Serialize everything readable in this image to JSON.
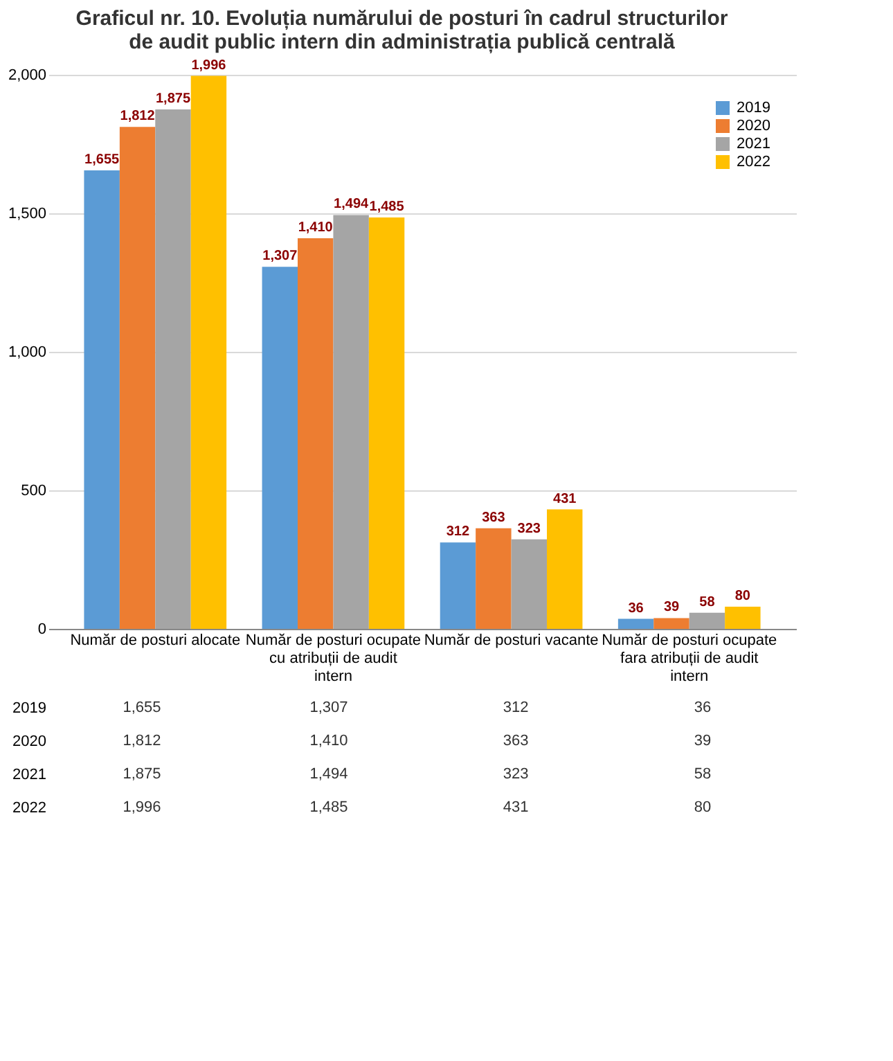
{
  "chart_data": {
    "type": "bar",
    "title": "Graficul nr. 10. Evoluția numărului de posturi în cadrul structurilor de audit public intern din administrația publică centrală",
    "categories": [
      "Număr de posturi alocate",
      "Număr de posturi ocupate cu atribuții de audit intern",
      "Număr de posturi vacante",
      "Număr de posturi ocupate fara atribuții de audit intern"
    ],
    "series": [
      {
        "name": "2019",
        "color": "#5b9bd5",
        "values": [
          1655,
          1307,
          312,
          36
        ],
        "value_labels": [
          "1,655",
          "1,307",
          "312",
          "36"
        ]
      },
      {
        "name": "2020",
        "color": "#ed7d31",
        "values": [
          1812,
          1410,
          363,
          39
        ],
        "value_labels": [
          "1,812",
          "1,410",
          "363",
          "39"
        ]
      },
      {
        "name": "2021",
        "color": "#a5a5a5",
        "values": [
          1875,
          1494,
          323,
          58
        ],
        "value_labels": [
          "1,875",
          "1,494",
          "323",
          "58"
        ]
      },
      {
        "name": "2022",
        "color": "#ffc000",
        "values": [
          1996,
          1485,
          431,
          80
        ],
        "value_labels": [
          "1,996",
          "1,485",
          "431",
          "80"
        ]
      }
    ],
    "ylim": [
      0,
      2000
    ],
    "yticks": [
      0,
      {
        "value": 500,
        "label": "500"
      },
      {
        "value": 1000,
        "label": "1,000"
      },
      {
        "value": 1500,
        "label": "1,500"
      },
      {
        "value": 2000,
        "label": "2,000"
      }
    ],
    "grid": "y",
    "legend": "top right"
  }
}
